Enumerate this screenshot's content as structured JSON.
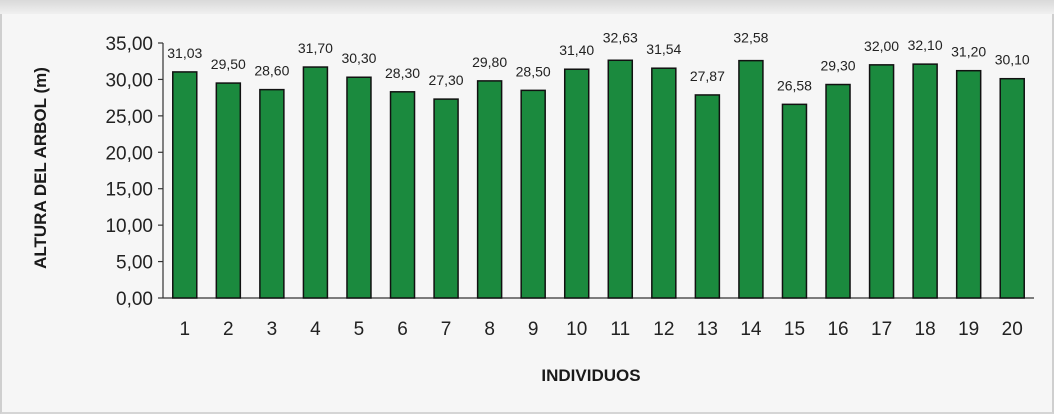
{
  "chart_data": {
    "type": "bar",
    "title": "",
    "xlabel": "INDIVIDUOS",
    "ylabel": "ALTURA DEL ARBOL (m)",
    "ylim": [
      0,
      35
    ],
    "yticks": [
      "0,00",
      "5,00",
      "10,00",
      "15,00",
      "20,00",
      "25,00",
      "30,00",
      "35,00"
    ],
    "ytick_values": [
      0,
      5,
      10,
      15,
      20,
      25,
      30,
      35
    ],
    "categories": [
      "1",
      "2",
      "3",
      "4",
      "5",
      "6",
      "7",
      "8",
      "9",
      "10",
      "11",
      "12",
      "13",
      "14",
      "15",
      "16",
      "17",
      "18",
      "19",
      "20"
    ],
    "values": [
      31.03,
      29.5,
      28.6,
      31.7,
      30.3,
      28.3,
      27.3,
      29.8,
      28.5,
      31.4,
      32.63,
      31.54,
      27.87,
      32.58,
      26.58,
      29.3,
      32.0,
      32.1,
      31.2,
      30.1
    ],
    "value_labels": [
      "31,03",
      "29,50",
      "28,60",
      "31,70",
      "30,30",
      "28,30",
      "27,30",
      "29,80",
      "28,50",
      "31,40",
      "32,63",
      "31,54",
      "27,87",
      "32,58",
      "26,58",
      "29,30",
      "32,00",
      "32,10",
      "31,20",
      "30,10"
    ],
    "grid": false,
    "legend": "none",
    "bar_color": "#1b8a3e",
    "bar_edge_color": "#111111"
  }
}
